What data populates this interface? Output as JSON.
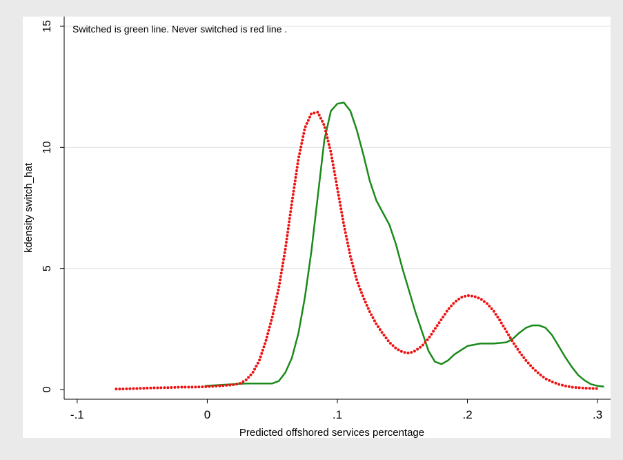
{
  "chart_data": {
    "type": "line",
    "annotation": "Switched is green line. Never switched is red line .",
    "xlabel": "Predicted offshored services percentage",
    "ylabel": "kdensity switch_hat",
    "xlim": [
      -0.11,
      0.31
    ],
    "ylim": [
      -0.4,
      15.4
    ],
    "xticks": [
      {
        "value": -0.1,
        "label": "-.1"
      },
      {
        "value": 0,
        "label": "0"
      },
      {
        "value": 0.1,
        "label": ".1"
      },
      {
        "value": 0.2,
        "label": ".2"
      },
      {
        "value": 0.3,
        "label": ".3"
      }
    ],
    "yticks": [
      {
        "value": 0,
        "label": "0"
      },
      {
        "value": 5,
        "label": "5"
      },
      {
        "value": 10,
        "label": "10"
      },
      {
        "value": 15,
        "label": "15"
      }
    ],
    "grid": "horizontal",
    "series": [
      {
        "color": "#1a8a1a",
        "style": "solid",
        "x": [
          -0.002,
          0.02,
          0.03,
          0.04,
          0.05,
          0.055,
          0.06,
          0.065,
          0.07,
          0.075,
          0.08,
          0.085,
          0.09,
          0.095,
          0.1,
          0.105,
          0.11,
          0.115,
          0.12,
          0.125,
          0.13,
          0.135,
          0.14,
          0.145,
          0.15,
          0.155,
          0.16,
          0.165,
          0.17,
          0.175,
          0.18,
          0.185,
          0.19,
          0.2,
          0.21,
          0.22,
          0.23,
          0.235,
          0.24,
          0.245,
          0.25,
          0.255,
          0.26,
          0.265,
          0.27,
          0.275,
          0.28,
          0.285,
          0.29,
          0.295,
          0.3,
          0.305
        ],
        "y": [
          0.15,
          0.22,
          0.25,
          0.25,
          0.25,
          0.35,
          0.7,
          1.3,
          2.3,
          3.8,
          5.7,
          8.0,
          10.3,
          11.5,
          11.8,
          11.85,
          11.5,
          10.7,
          9.7,
          8.6,
          7.8,
          7.3,
          6.8,
          6.0,
          5.0,
          4.1,
          3.2,
          2.4,
          1.6,
          1.15,
          1.05,
          1.2,
          1.45,
          1.8,
          1.9,
          1.9,
          1.95,
          2.1,
          2.35,
          2.55,
          2.65,
          2.65,
          2.55,
          2.25,
          1.8,
          1.35,
          0.95,
          0.6,
          0.38,
          0.22,
          0.15,
          0.12
        ]
      },
      {
        "color": "#ee1111",
        "style": "dotted",
        "x": [
          -0.07,
          -0.06,
          -0.05,
          -0.04,
          -0.03,
          -0.02,
          -0.01,
          0.0,
          0.01,
          0.02,
          0.025,
          0.03,
          0.035,
          0.04,
          0.045,
          0.05,
          0.055,
          0.06,
          0.065,
          0.07,
          0.075,
          0.08,
          0.085,
          0.09,
          0.095,
          0.1,
          0.105,
          0.11,
          0.115,
          0.12,
          0.125,
          0.13,
          0.135,
          0.14,
          0.145,
          0.15,
          0.155,
          0.16,
          0.165,
          0.17,
          0.175,
          0.18,
          0.185,
          0.19,
          0.195,
          0.2,
          0.205,
          0.21,
          0.215,
          0.22,
          0.225,
          0.23,
          0.235,
          0.24,
          0.245,
          0.25,
          0.255,
          0.26,
          0.265,
          0.27,
          0.275,
          0.28,
          0.29,
          0.3
        ],
        "y": [
          0.02,
          0.03,
          0.05,
          0.07,
          0.08,
          0.1,
          0.1,
          0.12,
          0.15,
          0.2,
          0.25,
          0.4,
          0.7,
          1.2,
          2.0,
          3.0,
          4.2,
          5.8,
          7.7,
          9.5,
          10.8,
          11.4,
          11.45,
          10.9,
          9.8,
          8.3,
          6.8,
          5.5,
          4.5,
          3.8,
          3.2,
          2.7,
          2.3,
          1.95,
          1.7,
          1.55,
          1.5,
          1.6,
          1.8,
          2.1,
          2.5,
          2.9,
          3.3,
          3.6,
          3.8,
          3.88,
          3.85,
          3.75,
          3.55,
          3.25,
          2.85,
          2.4,
          1.95,
          1.55,
          1.2,
          0.9,
          0.65,
          0.45,
          0.32,
          0.22,
          0.15,
          0.1,
          0.06,
          0.04
        ]
      }
    ]
  }
}
